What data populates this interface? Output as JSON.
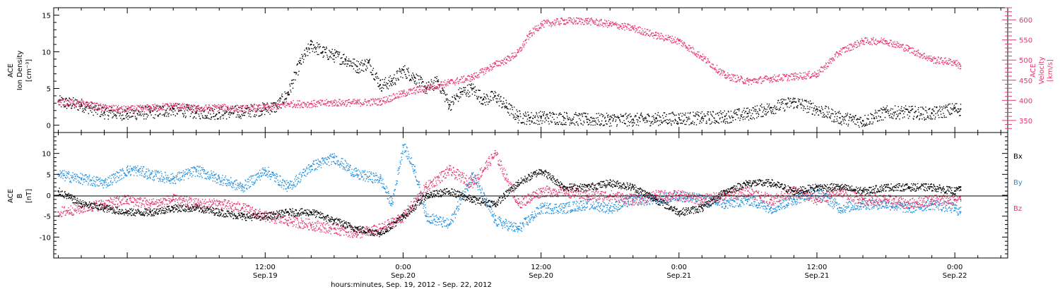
{
  "colors": {
    "black": "#000000",
    "pink": "#e8356a",
    "blue": "#1f8fe0",
    "axis": "#000000"
  },
  "x_axis": {
    "label": "hours:minutes, Sep. 19, 2012 - Sep. 22, 2012",
    "range_hours": [
      -6.4,
      76.6
    ],
    "major_ticks": [
      {
        "hour": 12,
        "line1": "12:00",
        "line2": "Sep.19"
      },
      {
        "hour": 24,
        "line1": "0:00",
        "line2": "Sep.20"
      },
      {
        "hour": 36,
        "line1": "12:00",
        "line2": "Sep.20"
      },
      {
        "hour": 48,
        "line1": "0:00",
        "line2": "Sep.21"
      },
      {
        "hour": 60,
        "line1": "12:00",
        "line2": "Sep.21"
      },
      {
        "hour": 72,
        "line1": "0:00",
        "line2": "Sep.22"
      }
    ]
  },
  "chart_data": [
    {
      "type": "scatter",
      "panel": "top",
      "ylabel_left": [
        "ACE",
        "Ion Density",
        "[cm⁻³]"
      ],
      "ylabel_right": [
        "ACE",
        "Velocity",
        "[km/s]"
      ],
      "ylim_left": [
        -1,
        16
      ],
      "yticks_left": [
        0,
        5,
        10,
        15
      ],
      "ylim_right": [
        320,
        630
      ],
      "yticks_right": [
        350,
        400,
        450,
        500,
        550,
        600
      ],
      "series": [
        {
          "color": "black",
          "axis": "left",
          "x": [
            -6,
            -4,
            -2,
            0,
            2,
            4,
            6,
            8,
            10,
            12,
            13,
            14,
            15,
            16,
            17,
            18,
            19,
            20,
            21,
            22,
            23,
            24,
            25,
            26,
            27,
            28,
            29,
            30,
            31,
            32,
            33,
            34,
            35,
            36,
            38,
            40,
            42,
            44,
            46,
            48,
            50,
            52,
            54,
            56,
            58,
            60,
            62,
            64,
            66,
            68,
            70,
            72,
            72.5
          ],
          "y": [
            3.2,
            2.8,
            1.8,
            1.6,
            1.8,
            2.2,
            1.8,
            1.7,
            1.9,
            2.3,
            2.6,
            4.5,
            8.5,
            11.0,
            10.0,
            9.5,
            9.0,
            8.0,
            8.5,
            5.5,
            6.0,
            7.5,
            6.5,
            5.0,
            6.0,
            2.8,
            4.5,
            5.0,
            3.5,
            4.0,
            2.5,
            1.2,
            1.0,
            1.1,
            1.0,
            0.8,
            0.8,
            0.8,
            0.9,
            1.0,
            1.0,
            1.2,
            1.6,
            2.4,
            3.2,
            2.2,
            1.0,
            0.6,
            1.8,
            1.8,
            1.6,
            2.3,
            2.2
          ]
        },
        {
          "color": "pink",
          "axis": "right",
          "x": [
            -6,
            -4,
            -2,
            0,
            2,
            4,
            6,
            8,
            10,
            12,
            14,
            16,
            18,
            20,
            22,
            24,
            26,
            28,
            30,
            32,
            33,
            34,
            35,
            36,
            38,
            40,
            42,
            44,
            46,
            48,
            50,
            52,
            54,
            56,
            58,
            60,
            62,
            64,
            66,
            68,
            70,
            72,
            72.5
          ],
          "y": [
            398,
            392,
            382,
            378,
            382,
            387,
            380,
            383,
            380,
            382,
            392,
            392,
            395,
            395,
            398,
            418,
            432,
            445,
            458,
            490,
            502,
            520,
            565,
            590,
            598,
            598,
            590,
            580,
            562,
            548,
            508,
            462,
            448,
            455,
            460,
            466,
            522,
            548,
            548,
            528,
            502,
            495,
            485
          ]
        }
      ]
    },
    {
      "type": "scatter",
      "panel": "bottom",
      "ylabel_left": [
        "ACE",
        "B",
        "[nT]"
      ],
      "ylim": [
        -15,
        15
      ],
      "yticks": [
        -10,
        -5,
        0,
        5,
        10
      ],
      "zero_line": true,
      "legend": [
        "Bx",
        "By",
        "Bz"
      ],
      "series": [
        {
          "name": "Bx",
          "color": "black",
          "x": [
            -6,
            -4,
            -2,
            0,
            2,
            4,
            6,
            8,
            10,
            12,
            14,
            16,
            18,
            20,
            22,
            24,
            26,
            28,
            30,
            32,
            34,
            36,
            38,
            40,
            42,
            44,
            46,
            48,
            50,
            52,
            54,
            56,
            58,
            60,
            62,
            64,
            66,
            68,
            70,
            72,
            72.5
          ],
          "y": [
            1,
            -2,
            -3,
            -4,
            -4,
            -3,
            -3,
            -4,
            -5,
            -5,
            -4,
            -4,
            -6,
            -8,
            -9,
            -5,
            0,
            1,
            -1,
            -2,
            3,
            6,
            2,
            2,
            3,
            2,
            -1,
            -4,
            -3,
            1,
            3,
            3,
            1,
            2,
            2,
            1,
            2,
            2,
            2,
            1,
            2
          ]
        },
        {
          "name": "By",
          "color": "blue",
          "x": [
            -6,
            -4,
            -2,
            0,
            1,
            2,
            4,
            6,
            8,
            10,
            12,
            14,
            16,
            18,
            20,
            22,
            23,
            24,
            25,
            26,
            28,
            30,
            32,
            34,
            36,
            38,
            40,
            42,
            44,
            46,
            48,
            50,
            52,
            54,
            56,
            58,
            60,
            62,
            64,
            66,
            68,
            70,
            72,
            72.5
          ],
          "y": [
            5,
            4,
            3,
            6,
            6,
            5,
            4,
            6,
            4,
            2,
            6,
            2,
            7,
            9,
            5,
            4,
            -2,
            12,
            6,
            -5,
            -7,
            5,
            -6,
            -8,
            -3,
            -3,
            -2,
            -3,
            -1,
            -1,
            0,
            -1,
            -2,
            -1,
            -3,
            -1,
            1,
            -3,
            -2,
            -2,
            -3,
            -2,
            -3,
            -4
          ]
        },
        {
          "name": "Bz",
          "color": "pink",
          "x": [
            -6,
            -4,
            -2,
            0,
            2,
            4,
            6,
            8,
            10,
            12,
            14,
            16,
            18,
            20,
            22,
            24,
            26,
            28,
            30,
            32,
            34,
            36,
            38,
            40,
            42,
            44,
            46,
            48,
            50,
            52,
            54,
            56,
            58,
            60,
            62,
            64,
            66,
            68,
            70,
            72,
            72.5
          ],
          "y": [
            -4,
            -3,
            -2,
            -1,
            -2,
            -1,
            -2,
            -2,
            -3,
            -5,
            -6,
            -7,
            -8,
            -9,
            -8,
            -5,
            2,
            6,
            3,
            10,
            -2,
            1,
            1,
            0,
            0,
            -1,
            0,
            0,
            -1,
            0,
            1,
            -1,
            1,
            -1,
            1,
            -1,
            -1,
            -2,
            -1,
            -1,
            -1
          ]
        }
      ]
    }
  ]
}
